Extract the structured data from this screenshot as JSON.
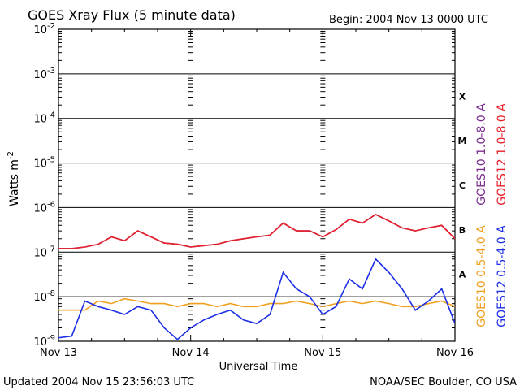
{
  "chart_data": {
    "type": "line",
    "title": "GOES Xray Flux (5 minute data)",
    "begin_label": "Begin:  2004 Nov 13 0000 UTC",
    "xlabel": "Universal Time",
    "ylabel": "Watts m",
    "ylabel_exponent": "-2",
    "y_scale": "log",
    "ylim": [
      1e-09,
      0.01
    ],
    "xlim": [
      0,
      3
    ],
    "x_tick_labels": [
      "Nov 13",
      "Nov 14",
      "Nov 15",
      "Nov 16"
    ],
    "y_tick_labels": [
      {
        "value": 1e-09,
        "base": "10",
        "exp": "-9"
      },
      {
        "value": 1e-08,
        "base": "10",
        "exp": "-8"
      },
      {
        "value": 1e-07,
        "base": "10",
        "exp": "-7"
      },
      {
        "value": 1e-06,
        "base": "10",
        "exp": "-6"
      },
      {
        "value": 1e-05,
        "base": "10",
        "exp": "-5"
      },
      {
        "value": 0.0001,
        "base": "10",
        "exp": "-4"
      },
      {
        "value": 0.001,
        "base": "10",
        "exp": "-3"
      },
      {
        "value": 0.01,
        "base": "10",
        "exp": "-2"
      }
    ],
    "flare_classes": [
      {
        "label": "A",
        "value": 3.16e-08
      },
      {
        "label": "B",
        "value": 3.16e-07
      },
      {
        "label": "C",
        "value": 3.16e-06
      },
      {
        "label": "M",
        "value": 3.16e-05
      },
      {
        "label": "X",
        "value": 0.000316
      }
    ],
    "legend_placement": "right",
    "series": [
      {
        "name": "GOES10 1.0-8.0 A",
        "color": "#7b2d8e",
        "points": [
          [
            0,
            1.2e-07
          ],
          [
            0.1,
            1.2e-07
          ],
          [
            0.2,
            1.3e-07
          ],
          [
            0.3,
            1.5e-07
          ],
          [
            0.4,
            2.2e-07
          ],
          [
            0.5,
            1.8e-07
          ],
          [
            0.6,
            3e-07
          ],
          [
            0.7,
            2.2e-07
          ],
          [
            0.8,
            1.6e-07
          ],
          [
            0.9,
            1.5e-07
          ],
          [
            1.0,
            1.3e-07
          ],
          [
            1.1,
            1.4e-07
          ],
          [
            1.2,
            1.5e-07
          ],
          [
            1.3,
            1.8e-07
          ],
          [
            1.4,
            2e-07
          ],
          [
            1.5,
            2.2e-07
          ],
          [
            1.6,
            2.4e-07
          ],
          [
            1.7,
            4.5e-07
          ],
          [
            1.8,
            3e-07
          ],
          [
            1.9,
            3e-07
          ],
          [
            2.0,
            2.2e-07
          ],
          [
            2.1,
            3.2e-07
          ],
          [
            2.2,
            5.5e-07
          ],
          [
            2.3,
            4.5e-07
          ],
          [
            2.4,
            7e-07
          ],
          [
            2.5,
            5e-07
          ],
          [
            2.6,
            3.5e-07
          ],
          [
            2.7,
            3e-07
          ],
          [
            2.8,
            3.5e-07
          ],
          [
            2.9,
            4e-07
          ],
          [
            3.0,
            2e-07
          ]
        ]
      },
      {
        "name": "GOES12 1.0-8.0 A",
        "color": "#e8202a",
        "points": [
          [
            0,
            1.2e-07
          ],
          [
            0.1,
            1.2e-07
          ],
          [
            0.2,
            1.3e-07
          ],
          [
            0.3,
            1.5e-07
          ],
          [
            0.4,
            2.2e-07
          ],
          [
            0.5,
            1.8e-07
          ],
          [
            0.6,
            3e-07
          ],
          [
            0.7,
            2.2e-07
          ],
          [
            0.8,
            1.6e-07
          ],
          [
            0.9,
            1.5e-07
          ],
          [
            1.0,
            1.3e-07
          ],
          [
            1.1,
            1.4e-07
          ],
          [
            1.2,
            1.5e-07
          ],
          [
            1.3,
            1.8e-07
          ],
          [
            1.4,
            2e-07
          ],
          [
            1.5,
            2.2e-07
          ],
          [
            1.6,
            2.4e-07
          ],
          [
            1.7,
            4.5e-07
          ],
          [
            1.8,
            3e-07
          ],
          [
            1.9,
            3e-07
          ],
          [
            2.0,
            2.2e-07
          ],
          [
            2.1,
            3.2e-07
          ],
          [
            2.2,
            5.5e-07
          ],
          [
            2.3,
            4.5e-07
          ],
          [
            2.4,
            7e-07
          ],
          [
            2.5,
            5e-07
          ],
          [
            2.6,
            3.5e-07
          ],
          [
            2.7,
            3e-07
          ],
          [
            2.8,
            3.5e-07
          ],
          [
            2.9,
            4e-07
          ],
          [
            3.0,
            2e-07
          ]
        ]
      },
      {
        "name": "GOES10 0.5-4.0 A",
        "color": "#f0a020",
        "points": [
          [
            0,
            5e-09
          ],
          [
            0.1,
            5e-09
          ],
          [
            0.2,
            5e-09
          ],
          [
            0.3,
            8e-09
          ],
          [
            0.4,
            7e-09
          ],
          [
            0.5,
            9e-09
          ],
          [
            0.6,
            8e-09
          ],
          [
            0.7,
            7e-09
          ],
          [
            0.8,
            7e-09
          ],
          [
            0.9,
            6e-09
          ],
          [
            1.0,
            7e-09
          ],
          [
            1.1,
            7e-09
          ],
          [
            1.2,
            6e-09
          ],
          [
            1.3,
            7e-09
          ],
          [
            1.4,
            6e-09
          ],
          [
            1.5,
            6e-09
          ],
          [
            1.6,
            7e-09
          ],
          [
            1.7,
            7e-09
          ],
          [
            1.8,
            8e-09
          ],
          [
            1.9,
            7e-09
          ],
          [
            2.0,
            6e-09
          ],
          [
            2.1,
            7e-09
          ],
          [
            2.2,
            8e-09
          ],
          [
            2.3,
            7e-09
          ],
          [
            2.4,
            8e-09
          ],
          [
            2.5,
            7e-09
          ],
          [
            2.6,
            6e-09
          ],
          [
            2.7,
            6e-09
          ],
          [
            2.8,
            7e-09
          ],
          [
            2.9,
            8e-09
          ],
          [
            3.0,
            6e-09
          ]
        ]
      },
      {
        "name": "GOES12 0.5-4.0 A",
        "color": "#1c2ee6",
        "points": [
          [
            0,
            1.2e-09
          ],
          [
            0.1,
            1.3e-09
          ],
          [
            0.2,
            8e-09
          ],
          [
            0.3,
            6e-09
          ],
          [
            0.4,
            5e-09
          ],
          [
            0.5,
            4e-09
          ],
          [
            0.6,
            6e-09
          ],
          [
            0.7,
            5e-09
          ],
          [
            0.8,
            2e-09
          ],
          [
            0.9,
            1.1e-09
          ],
          [
            1.0,
            2e-09
          ],
          [
            1.1,
            3e-09
          ],
          [
            1.2,
            4e-09
          ],
          [
            1.3,
            5e-09
          ],
          [
            1.4,
            3e-09
          ],
          [
            1.5,
            2.5e-09
          ],
          [
            1.6,
            4e-09
          ],
          [
            1.7,
            3.5e-08
          ],
          [
            1.8,
            1.5e-08
          ],
          [
            1.9,
            1e-08
          ],
          [
            2.0,
            4e-09
          ],
          [
            2.1,
            6e-09
          ],
          [
            2.2,
            2.5e-08
          ],
          [
            2.3,
            1.5e-08
          ],
          [
            2.4,
            7e-08
          ],
          [
            2.5,
            3.5e-08
          ],
          [
            2.6,
            1.5e-08
          ],
          [
            2.7,
            5e-09
          ],
          [
            2.8,
            8e-09
          ],
          [
            2.9,
            1.5e-08
          ],
          [
            3.0,
            2.5e-09
          ]
        ]
      }
    ]
  },
  "footer": {
    "updated": "Updated 2004 Nov 15 23:56:03 UTC",
    "credit": "NOAA/SEC Boulder, CO USA"
  }
}
